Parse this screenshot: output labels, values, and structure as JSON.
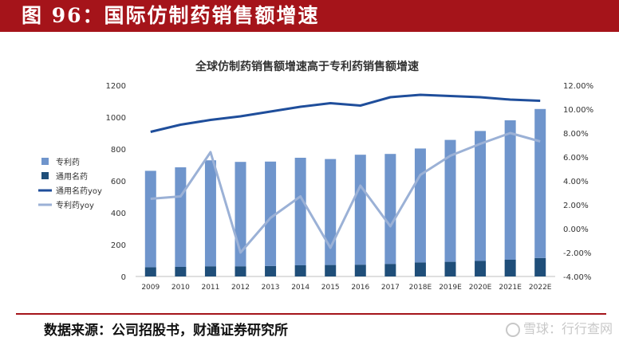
{
  "header": {
    "title": "图 96：国际仿制药销售额增速"
  },
  "source": "数据来源：公司招股书，财通证券研究所",
  "watermark": "雪球：行行查网",
  "colors": {
    "header_bg": "#a5141a",
    "patent_bar": "#6f95cc",
    "generic_bar": "#1f4e79",
    "generic_yoy": "#1f4e9b",
    "patent_yoy": "#9bb1d6"
  },
  "chart_data": {
    "type": "bar",
    "title": "全球仿制药销售额增速高于专利药销售额增速",
    "categories": [
      "2009",
      "2010",
      "2011",
      "2012",
      "2013",
      "2014",
      "2015",
      "2016",
      "2017",
      "2018E",
      "2019E",
      "2020E",
      "2021E",
      "2022E"
    ],
    "series": [
      {
        "name": "专利药",
        "type": "bar",
        "axis": "left",
        "stacked": true,
        "values": [
          605,
          625,
          665,
          655,
          655,
          675,
          665,
          690,
          690,
          715,
          765,
          815,
          875,
          935
        ]
      },
      {
        "name": "通用名药",
        "type": "bar",
        "axis": "left",
        "stacked": true,
        "values": [
          58,
          60,
          64,
          64,
          66,
          70,
          72,
          74,
          79,
          88,
          92,
          98,
          105,
          116
        ]
      },
      {
        "name": "通用名药yoy",
        "type": "line",
        "axis": "right",
        "values": [
          8.1,
          8.7,
          9.1,
          9.4,
          9.8,
          10.2,
          10.5,
          10.3,
          11.0,
          11.2,
          11.1,
          11.0,
          10.8,
          10.7
        ]
      },
      {
        "name": "专利药yoy",
        "type": "line",
        "axis": "right",
        "values": [
          2.5,
          2.7,
          6.4,
          -2.0,
          0.9,
          2.7,
          -1.6,
          3.6,
          0.2,
          4.5,
          6.1,
          7.1,
          8.0,
          7.3
        ]
      }
    ],
    "left_axis": {
      "min": 0,
      "max": 1200,
      "ticks": [
        "0",
        "200",
        "400",
        "600",
        "800",
        "1000",
        "1200"
      ]
    },
    "right_axis": {
      "min": -4,
      "max": 12,
      "ticks": [
        "-4.00%",
        "-2.00%",
        "0.00%",
        "2.00%",
        "4.00%",
        "6.00%",
        "8.00%",
        "10.00%",
        "12.00%"
      ]
    },
    "legend_position": "left",
    "grid": false
  }
}
